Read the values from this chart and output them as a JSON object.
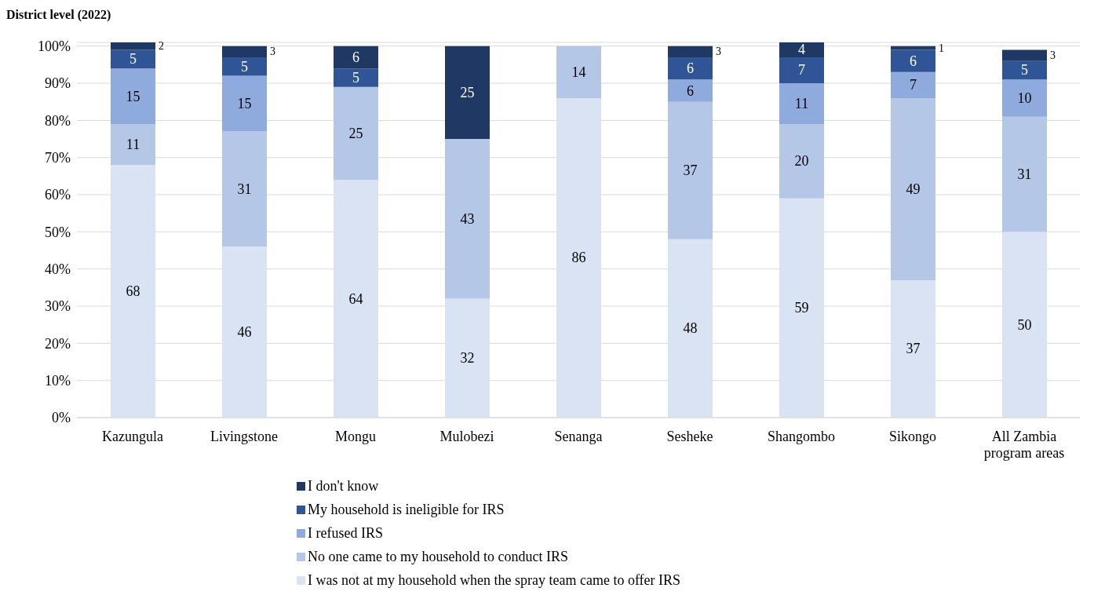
{
  "chart_data": {
    "type": "bar",
    "stacked": true,
    "title": "District level (2022)",
    "categories": [
      "Kazungula",
      "Livingstone",
      "Mongu",
      "Mulobezi",
      "Senanga",
      "Sesheke",
      "Shangombo",
      "Sikongo",
      "All Zambia program areas"
    ],
    "series": [
      {
        "name": "I was not at my household when the spray team came to offer IRS",
        "color": "#dae3f3",
        "values": [
          68,
          46,
          64,
          32,
          86,
          48,
          59,
          37,
          50
        ]
      },
      {
        "name": "No one came to my household to conduct IRS",
        "color": "#b4c7e7",
        "values": [
          11,
          31,
          25,
          43,
          14,
          37,
          20,
          49,
          31
        ]
      },
      {
        "name": "I refused IRS",
        "color": "#8faadc",
        "values": [
          15,
          15,
          null,
          null,
          null,
          6,
          11,
          7,
          10
        ]
      },
      {
        "name": "My household is ineligible for IRS",
        "color": "#2f5597",
        "values": [
          5,
          5,
          5,
          null,
          null,
          6,
          7,
          6,
          5
        ]
      },
      {
        "name": "I don't know",
        "color": "#1f3864",
        "values": [
          2,
          3,
          6,
          25,
          null,
          3,
          4,
          1,
          3
        ]
      }
    ],
    "ylim": [
      0,
      101
    ],
    "yticks": [
      {
        "value": 0,
        "label": "0%"
      },
      {
        "value": 10,
        "label": "10%"
      },
      {
        "value": 20,
        "label": "20%"
      },
      {
        "value": 30,
        "label": "30%"
      },
      {
        "value": 40,
        "label": "40%"
      },
      {
        "value": 50,
        "label": "50%"
      },
      {
        "value": 60,
        "label": "60%"
      },
      {
        "value": 70,
        "label": "70%"
      },
      {
        "value": 80,
        "label": "80%"
      },
      {
        "value": 90,
        "label": "90%"
      },
      {
        "value": 100,
        "label": "100%"
      }
    ],
    "grid": "y",
    "legend": "bottom",
    "data_labels": true
  }
}
